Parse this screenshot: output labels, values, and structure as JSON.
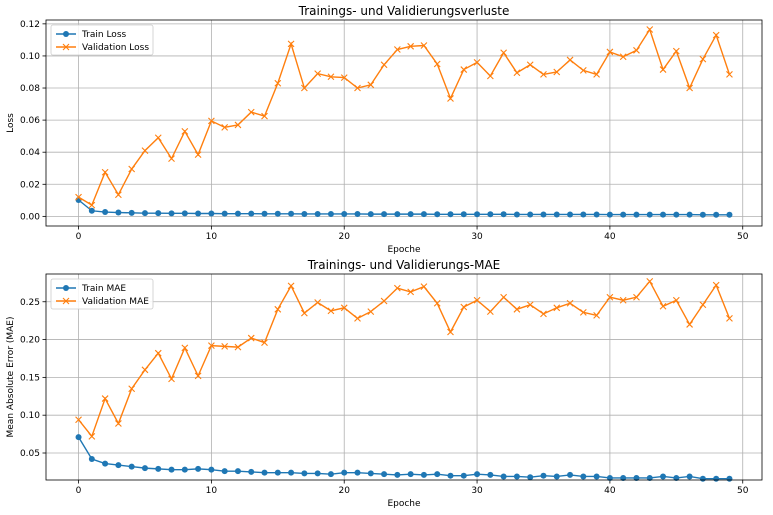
{
  "colors": {
    "train": "#1f77b4",
    "validation": "#ff7f0e",
    "grid": "#b0b0b0"
  },
  "chart_data": [
    {
      "type": "line",
      "title": "Trainings- und Validierungsverluste",
      "xlabel": "Epoche",
      "ylabel": "Loss",
      "xlim": [
        -2.45,
        51.45
      ],
      "ylim": [
        -0.006,
        0.1224
      ],
      "xticks": [
        0,
        10,
        20,
        30,
        40,
        50
      ],
      "xtick_labels": [
        "0",
        "10",
        "20",
        "30",
        "40",
        "50"
      ],
      "yticks": [
        0,
        0.02,
        0.04,
        0.06,
        0.08,
        0.1,
        0.12
      ],
      "ytick_labels": [
        "0.00",
        "0.02",
        "0.04",
        "0.06",
        "0.08",
        "0.10",
        "0.12"
      ],
      "grid": true,
      "legend": "top-left",
      "x": [
        0,
        1,
        2,
        3,
        4,
        5,
        6,
        7,
        8,
        9,
        10,
        11,
        12,
        13,
        14,
        15,
        16,
        17,
        18,
        19,
        20,
        21,
        22,
        23,
        24,
        25,
        26,
        27,
        28,
        29,
        30,
        31,
        32,
        33,
        34,
        35,
        36,
        37,
        38,
        39,
        40,
        41,
        42,
        43,
        44,
        45,
        46,
        47,
        48,
        49
      ],
      "series": [
        {
          "name": "Train Loss",
          "marker": "circle",
          "values": [
            0.0102,
            0.0035,
            0.0027,
            0.0024,
            0.0022,
            0.002,
            0.002,
            0.0019,
            0.0019,
            0.0018,
            0.0018,
            0.0017,
            0.0017,
            0.0017,
            0.0016,
            0.0016,
            0.0016,
            0.0015,
            0.0015,
            0.0015,
            0.0015,
            0.0015,
            0.0014,
            0.0014,
            0.0014,
            0.0014,
            0.0014,
            0.0013,
            0.0013,
            0.0013,
            0.0013,
            0.0013,
            0.0013,
            0.0012,
            0.0012,
            0.0012,
            0.0012,
            0.0012,
            0.0012,
            0.0012,
            0.0011,
            0.0011,
            0.0011,
            0.0011,
            0.0011,
            0.0011,
            0.0011,
            0.001,
            0.001,
            0.001
          ]
        },
        {
          "name": "Validation Loss",
          "marker": "x",
          "values": [
            0.012,
            0.007,
            0.0275,
            0.0135,
            0.0295,
            0.041,
            0.049,
            0.036,
            0.053,
            0.0385,
            0.0595,
            0.0555,
            0.057,
            0.065,
            0.0625,
            0.083,
            0.1075,
            0.08,
            0.089,
            0.087,
            0.0865,
            0.08,
            0.082,
            0.0945,
            0.104,
            0.106,
            0.1065,
            0.095,
            0.0735,
            0.0915,
            0.096,
            0.0875,
            0.102,
            0.0895,
            0.0945,
            0.0885,
            0.09,
            0.0975,
            0.091,
            0.0885,
            0.1025,
            0.0995,
            0.1035,
            0.1165,
            0.0915,
            0.103,
            0.08,
            0.098,
            0.113,
            0.0885
          ]
        }
      ]
    },
    {
      "type": "line",
      "title": "Trainings- und Validierungs-MAE",
      "xlabel": "Epoche",
      "ylabel": "Mean Absolute Error (MAE)",
      "xlim": [
        -2.45,
        51.45
      ],
      "ylim": [
        0.0143,
        0.2867
      ],
      "xticks": [
        0,
        10,
        20,
        30,
        40,
        50
      ],
      "xtick_labels": [
        "0",
        "10",
        "20",
        "30",
        "40",
        "50"
      ],
      "yticks": [
        0.05,
        0.1,
        0.15,
        0.2,
        0.25
      ],
      "ytick_labels": [
        "0.05",
        "0.10",
        "0.15",
        "0.20",
        "0.25"
      ],
      "grid": true,
      "legend": "top-left",
      "x": [
        0,
        1,
        2,
        3,
        4,
        5,
        6,
        7,
        8,
        9,
        10,
        11,
        12,
        13,
        14,
        15,
        16,
        17,
        18,
        19,
        20,
        21,
        22,
        23,
        24,
        25,
        26,
        27,
        28,
        29,
        30,
        31,
        32,
        33,
        34,
        35,
        36,
        37,
        38,
        39,
        40,
        41,
        42,
        43,
        44,
        45,
        46,
        47,
        48,
        49
      ],
      "series": [
        {
          "name": "Train MAE",
          "marker": "circle",
          "values": [
            0.071,
            0.042,
            0.036,
            0.034,
            0.032,
            0.03,
            0.029,
            0.028,
            0.028,
            0.029,
            0.028,
            0.026,
            0.026,
            0.025,
            0.024,
            0.024,
            0.024,
            0.023,
            0.023,
            0.022,
            0.024,
            0.024,
            0.023,
            0.022,
            0.021,
            0.022,
            0.021,
            0.022,
            0.02,
            0.02,
            0.022,
            0.021,
            0.019,
            0.019,
            0.018,
            0.02,
            0.019,
            0.021,
            0.019,
            0.019,
            0.017,
            0.017,
            0.017,
            0.017,
            0.019,
            0.017,
            0.019,
            0.016,
            0.016,
            0.016
          ]
        },
        {
          "name": "Validation MAE",
          "marker": "x",
          "values": [
            0.094,
            0.072,
            0.122,
            0.089,
            0.135,
            0.16,
            0.182,
            0.148,
            0.189,
            0.152,
            0.192,
            0.191,
            0.19,
            0.202,
            0.196,
            0.24,
            0.271,
            0.235,
            0.249,
            0.238,
            0.242,
            0.228,
            0.237,
            0.251,
            0.268,
            0.263,
            0.27,
            0.248,
            0.21,
            0.243,
            0.252,
            0.237,
            0.256,
            0.24,
            0.246,
            0.234,
            0.242,
            0.248,
            0.236,
            0.232,
            0.256,
            0.252,
            0.256,
            0.277,
            0.244,
            0.252,
            0.22,
            0.246,
            0.272,
            0.228
          ]
        }
      ]
    }
  ]
}
